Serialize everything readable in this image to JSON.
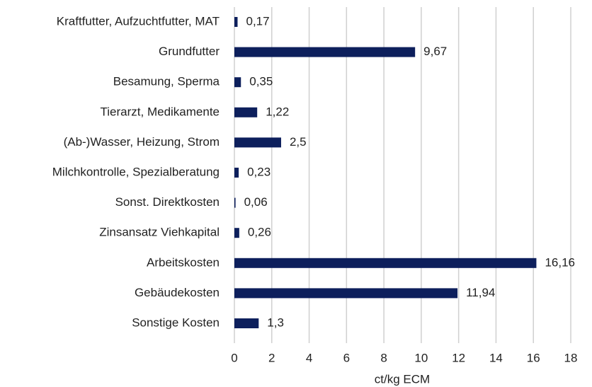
{
  "chart_data": {
    "type": "bar",
    "orientation": "horizontal",
    "categories": [
      "Kraftfutter, Aufzuchtfutter, MAT",
      "Grundfutter",
      "Besamung, Sperma",
      "Tierarzt, Medikamente",
      "(Ab-)Wasser, Heizung, Strom",
      "Milchkontrolle, Spezialberatung",
      "Sonst. Direktkosten",
      "Zinsansatz Viehkapital",
      "Arbeitskosten",
      "Gebäudekosten",
      "Sonstige Kosten"
    ],
    "values": [
      0.17,
      9.67,
      0.35,
      1.22,
      2.5,
      0.23,
      0.06,
      0.26,
      16.16,
      11.94,
      1.3
    ],
    "value_labels": [
      "0,17",
      "9,67",
      "0,35",
      "1,22",
      "2,5",
      "0,23",
      "0,06",
      "0,26",
      "16,16",
      "11,94",
      "1,3"
    ],
    "color": "#0d1f5c",
    "xlabel": "ct/kg ECM",
    "xlim": [
      0,
      18
    ],
    "xticks": [
      0,
      2,
      4,
      6,
      8,
      10,
      12,
      14,
      16,
      18
    ],
    "grid": true
  }
}
